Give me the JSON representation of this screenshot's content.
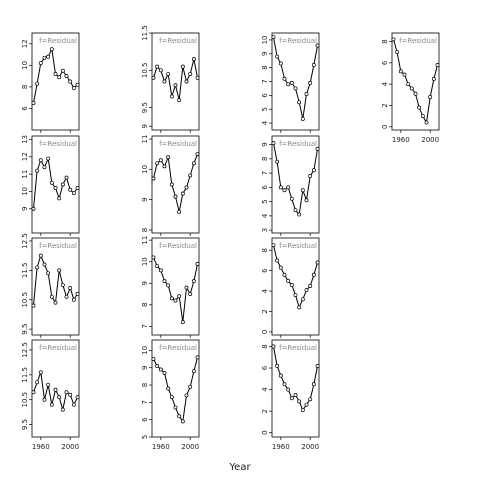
{
  "chart_data": {
    "type": "line",
    "xlabel": "Year",
    "strip_label": "f=Residual",
    "x_ticks": [
      1960,
      2000
    ],
    "x_range": [
      1948,
      2012
    ],
    "line_color": "#000000",
    "panels": [
      {
        "col": 0,
        "row": 0,
        "ylim": [
          4,
          13
        ],
        "y_ticks": [
          6,
          8,
          10,
          12
        ],
        "x": [
          1950,
          1955,
          1960,
          1965,
          1970,
          1975,
          1980,
          1985,
          1990,
          1995,
          2000,
          2005,
          2010
        ],
        "y": [
          6.5,
          8.3,
          10.2,
          10.7,
          10.8,
          11.5,
          9.2,
          8.9,
          9.5,
          9.0,
          8.5,
          7.9,
          8.2
        ]
      },
      {
        "col": 1,
        "row": 0,
        "ylim": [
          8.9,
          11.5
        ],
        "y_ticks": [
          9.0,
          9.5,
          10.5,
          11.5
        ],
        "x": [
          1950,
          1955,
          1960,
          1965,
          1970,
          1975,
          1980,
          1985,
          1990,
          1995,
          2000,
          2005,
          2010
        ],
        "y": [
          10.3,
          10.6,
          10.5,
          10.2,
          10.4,
          9.8,
          10.1,
          9.7,
          10.6,
          10.2,
          10.4,
          10.8,
          10.3
        ]
      },
      {
        "col": 2,
        "row": 0,
        "ylim": [
          3.5,
          10.5
        ],
        "y_ticks": [
          4,
          5,
          6,
          7,
          8,
          9,
          10
        ],
        "x": [
          1950,
          1955,
          1960,
          1965,
          1970,
          1975,
          1980,
          1985,
          1990,
          1995,
          2000,
          2005,
          2010
        ],
        "y": [
          10.2,
          8.8,
          8.3,
          7.2,
          6.8,
          6.9,
          6.5,
          5.5,
          4.3,
          6.1,
          6.9,
          8.2,
          9.6
        ]
      },
      {
        "col": 3,
        "row": 0,
        "ylim": [
          -0.3,
          8.8
        ],
        "y_ticks": [
          0,
          2,
          4,
          6,
          8
        ],
        "x": [
          1950,
          1955,
          1960,
          1965,
          1970,
          1975,
          1980,
          1985,
          1990,
          1995,
          2000,
          2005,
          2010
        ],
        "y": [
          8.2,
          7.0,
          5.2,
          4.9,
          4.0,
          3.6,
          3.1,
          1.8,
          1.0,
          0.4,
          2.8,
          4.5,
          5.8
        ]
      },
      {
        "col": 0,
        "row": 1,
        "ylim": [
          7.6,
          13.2
        ],
        "y_ticks": [
          9,
          10,
          11,
          12,
          13
        ],
        "x": [
          1950,
          1955,
          1960,
          1965,
          1970,
          1975,
          1980,
          1985,
          1990,
          1995,
          2000,
          2005,
          2010
        ],
        "y": [
          9.0,
          11.2,
          11.8,
          11.4,
          11.9,
          10.5,
          10.2,
          9.6,
          10.4,
          10.8,
          10.1,
          9.9,
          10.2
        ]
      },
      {
        "col": 1,
        "row": 1,
        "ylim": [
          7.9,
          11.1
        ],
        "y_ticks": [
          8.0,
          9.0,
          10.0,
          11.0
        ],
        "x": [
          1950,
          1955,
          1960,
          1965,
          1970,
          1975,
          1980,
          1985,
          1990,
          1995,
          2000,
          2005,
          2010
        ],
        "y": [
          9.7,
          10.2,
          10.3,
          10.1,
          10.4,
          9.5,
          9.1,
          8.6,
          9.2,
          9.4,
          9.8,
          10.2,
          10.5
        ]
      },
      {
        "col": 2,
        "row": 1,
        "ylim": [
          2.8,
          9.6
        ],
        "y_ticks": [
          3,
          4,
          5,
          6,
          7,
          8,
          9
        ],
        "x": [
          1950,
          1955,
          1960,
          1965,
          1970,
          1975,
          1980,
          1985,
          1990,
          1995,
          2000,
          2005,
          2010
        ],
        "y": [
          9.1,
          7.8,
          6.0,
          5.8,
          6.0,
          5.2,
          4.4,
          4.1,
          5.8,
          5.1,
          6.8,
          7.2,
          8.7
        ]
      },
      {
        "col": 0,
        "row": 2,
        "ylim": [
          9.3,
          12.6
        ],
        "y_ticks": [
          9.5,
          10.5,
          11.5,
          12.5
        ],
        "x": [
          1950,
          1955,
          1960,
          1965,
          1970,
          1975,
          1980,
          1985,
          1990,
          1995,
          2000,
          2005,
          2010
        ],
        "y": [
          10.3,
          11.6,
          12.0,
          11.7,
          11.4,
          10.6,
          10.4,
          11.5,
          11.0,
          10.6,
          10.9,
          10.5,
          10.7
        ]
      },
      {
        "col": 1,
        "row": 2,
        "ylim": [
          6.6,
          11.1
        ],
        "y_ticks": [
          7,
          8,
          9,
          10,
          11
        ],
        "x": [
          1950,
          1955,
          1960,
          1965,
          1970,
          1975,
          1980,
          1985,
          1990,
          1995,
          2000,
          2005,
          2010
        ],
        "y": [
          10.2,
          9.8,
          9.6,
          9.1,
          8.9,
          8.3,
          8.2,
          8.4,
          7.2,
          8.8,
          8.5,
          9.1,
          9.9
        ]
      },
      {
        "col": 2,
        "row": 2,
        "ylim": [
          -0.3,
          9.2
        ],
        "y_ticks": [
          0,
          2,
          4,
          6,
          8
        ],
        "x": [
          1950,
          1955,
          1960,
          1965,
          1970,
          1975,
          1980,
          1985,
          1990,
          1995,
          2000,
          2005,
          2010
        ],
        "y": [
          8.5,
          7.0,
          6.3,
          5.6,
          5.0,
          4.6,
          3.6,
          2.4,
          3.2,
          4.1,
          4.5,
          5.6,
          6.8
        ]
      },
      {
        "col": 0,
        "row": 3,
        "ylim": [
          9.0,
          12.9
        ],
        "y_ticks": [
          9.5,
          10.5,
          11.5,
          12.5
        ],
        "x": [
          1950,
          1955,
          1960,
          1965,
          1970,
          1975,
          1980,
          1985,
          1990,
          1995,
          2000,
          2005,
          2010
        ],
        "y": [
          10.8,
          11.2,
          11.6,
          10.5,
          11.1,
          10.3,
          10.9,
          10.6,
          10.1,
          10.8,
          10.7,
          10.3,
          10.6
        ]
      },
      {
        "col": 1,
        "row": 3,
        "ylim": [
          5.0,
          10.6
        ],
        "y_ticks": [
          5,
          6,
          7,
          8,
          9,
          10
        ],
        "x": [
          1950,
          1955,
          1960,
          1965,
          1970,
          1975,
          1980,
          1985,
          1990,
          1995,
          2000,
          2005,
          2010
        ],
        "y": [
          9.5,
          9.1,
          8.9,
          8.7,
          7.8,
          7.3,
          6.7,
          6.2,
          5.9,
          7.4,
          7.9,
          8.8,
          9.6
        ]
      },
      {
        "col": 2,
        "row": 3,
        "ylim": [
          -0.4,
          8.6
        ],
        "y_ticks": [
          0,
          2,
          4,
          6,
          8
        ],
        "x": [
          1950,
          1955,
          1960,
          1965,
          1970,
          1975,
          1980,
          1985,
          1990,
          1995,
          2000,
          2005,
          2010
        ],
        "y": [
          8.0,
          6.2,
          5.3,
          4.5,
          4.0,
          3.2,
          3.5,
          2.9,
          2.1,
          2.6,
          3.1,
          4.5,
          6.2
        ]
      }
    ]
  }
}
